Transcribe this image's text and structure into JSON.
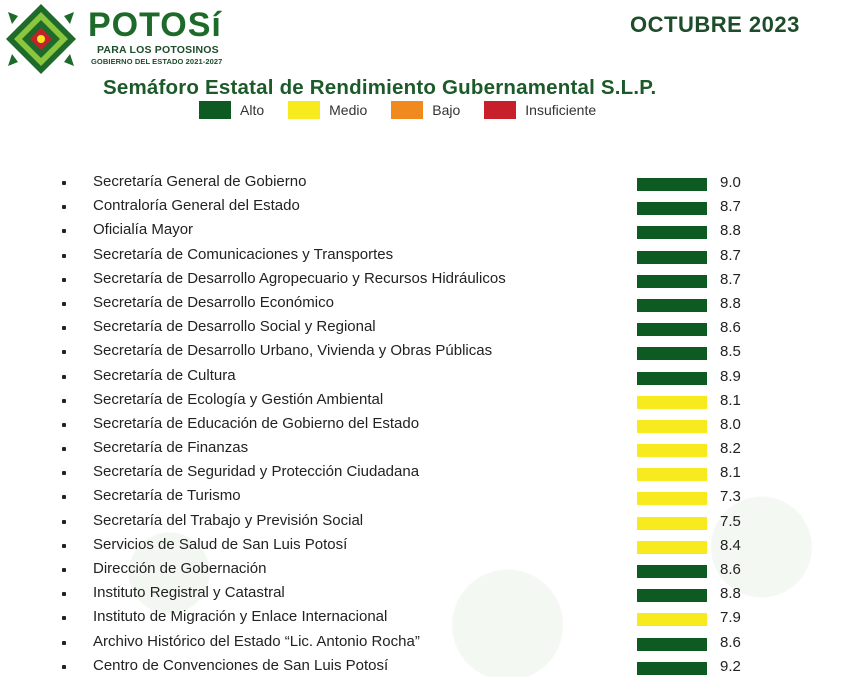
{
  "header": {
    "brand_name": "POTOSí",
    "brand_tagline": "PARA LOS POTOSINOS",
    "brand_government": "GOBIERNO DEL ESTADO 2021-2027",
    "period": "OCTUBRE 2023",
    "title": "Semáforo Estatal de Rendimiento Gubernamental S.L.P."
  },
  "colors": {
    "alto": "#0d5a23",
    "medio": "#f7ea1e",
    "bajo": "#f08a1f",
    "insuficiente": "#c8202a",
    "brand_green": "#1d6a2a"
  },
  "legend": [
    {
      "label": "Alto",
      "color": "#0d5a23"
    },
    {
      "label": "Medio",
      "color": "#f7ea1e"
    },
    {
      "label": "Bajo",
      "color": "#f08a1f"
    },
    {
      "label": "Insuficiente",
      "color": "#c8202a"
    }
  ],
  "rows": [
    {
      "name": "Secretaría General de Gobierno",
      "score": "9.0",
      "level": "alto"
    },
    {
      "name": "Contraloría General del Estado",
      "score": "8.7",
      "level": "alto"
    },
    {
      "name": "Oficialía Mayor",
      "score": "8.8",
      "level": "alto"
    },
    {
      "name": "Secretaría de Comunicaciones y Transportes",
      "score": "8.7",
      "level": "alto"
    },
    {
      "name": "Secretaría de Desarrollo Agropecuario y Recursos Hidráulicos",
      "score": "8.7",
      "level": "alto"
    },
    {
      "name": "Secretaría de Desarrollo Económico",
      "score": "8.8",
      "level": "alto"
    },
    {
      "name": "Secretaría de Desarrollo Social y Regional",
      "score": "8.6",
      "level": "alto"
    },
    {
      "name": "Secretaría de Desarrollo Urbano, Vivienda y Obras Públicas",
      "score": "8.5",
      "level": "alto"
    },
    {
      "name": "Secretaría de Cultura",
      "score": "8.9",
      "level": "alto"
    },
    {
      "name": "Secretaría de Ecología y Gestión Ambiental",
      "score": "8.1",
      "level": "medio"
    },
    {
      "name": "Secretaría de Educación de Gobierno del Estado",
      "score": "8.0",
      "level": "medio"
    },
    {
      "name": "Secretaría de Finanzas",
      "score": "8.2",
      "level": "medio"
    },
    {
      "name": "Secretaría de Seguridad y Protección Ciudadana",
      "score": "8.1",
      "level": "medio"
    },
    {
      "name": "Secretaría de Turismo",
      "score": "7.3",
      "level": "medio"
    },
    {
      "name": "Secretaría del Trabajo y Previsión Social",
      "score": "7.5",
      "level": "medio"
    },
    {
      "name": "Servicios de Salud de San Luis Potosí",
      "score": "8.4",
      "level": "medio"
    },
    {
      "name": "Dirección de Gobernación",
      "score": "8.6",
      "level": "alto"
    },
    {
      "name": "Instituto Registral y Catastral",
      "score": "8.8",
      "level": "alto"
    },
    {
      "name": "Instituto de Migración y Enlace Internacional",
      "score": "7.9",
      "level": "medio"
    },
    {
      "name": "Archivo Histórico del Estado “Lic. Antonio Rocha”",
      "score": "8.6",
      "level": "alto"
    },
    {
      "name": "Centro de Convenciones de San Luis Potosí",
      "score": "9.2",
      "level": "alto"
    }
  ]
}
